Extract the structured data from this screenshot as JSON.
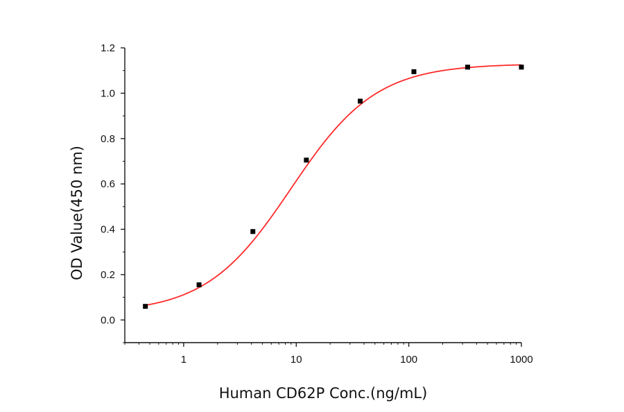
{
  "chart_data": {
    "type": "scatter",
    "title": "",
    "xlabel": "Human  CD62P Conc.(ng/mL)",
    "ylabel": "OD Value(450 nm)",
    "xscale": "log",
    "xlim": [
      0.3,
      1000
    ],
    "ylim": [
      -0.1,
      1.2
    ],
    "xticks": [
      1,
      10,
      100,
      1000
    ],
    "xtick_labels": [
      "1",
      "10",
      "100",
      "1000"
    ],
    "yticks": [
      0.0,
      0.2,
      0.4,
      0.6,
      0.8,
      1.0,
      1.2
    ],
    "ytick_labels": [
      "0.0",
      "0.2",
      "0.4",
      "0.6",
      "0.8",
      "1.0",
      "1.2"
    ],
    "grid": false,
    "legend": "none",
    "series": [
      {
        "type": "scatter",
        "color": "#000000",
        "marker": "square",
        "x": [
          0.457,
          1.37,
          4.12,
          12.3,
          37.0,
          111,
          333,
          1000
        ],
        "y": [
          0.06,
          0.155,
          0.39,
          0.705,
          0.965,
          1.095,
          1.115,
          1.115
        ]
      },
      {
        "type": "line",
        "color": "#ff2a2a",
        "fit": "4PL",
        "params": {
          "bottom": 0.03,
          "top": 1.13,
          "ec50": 9.0,
          "hill": 1.15
        }
      }
    ]
  }
}
